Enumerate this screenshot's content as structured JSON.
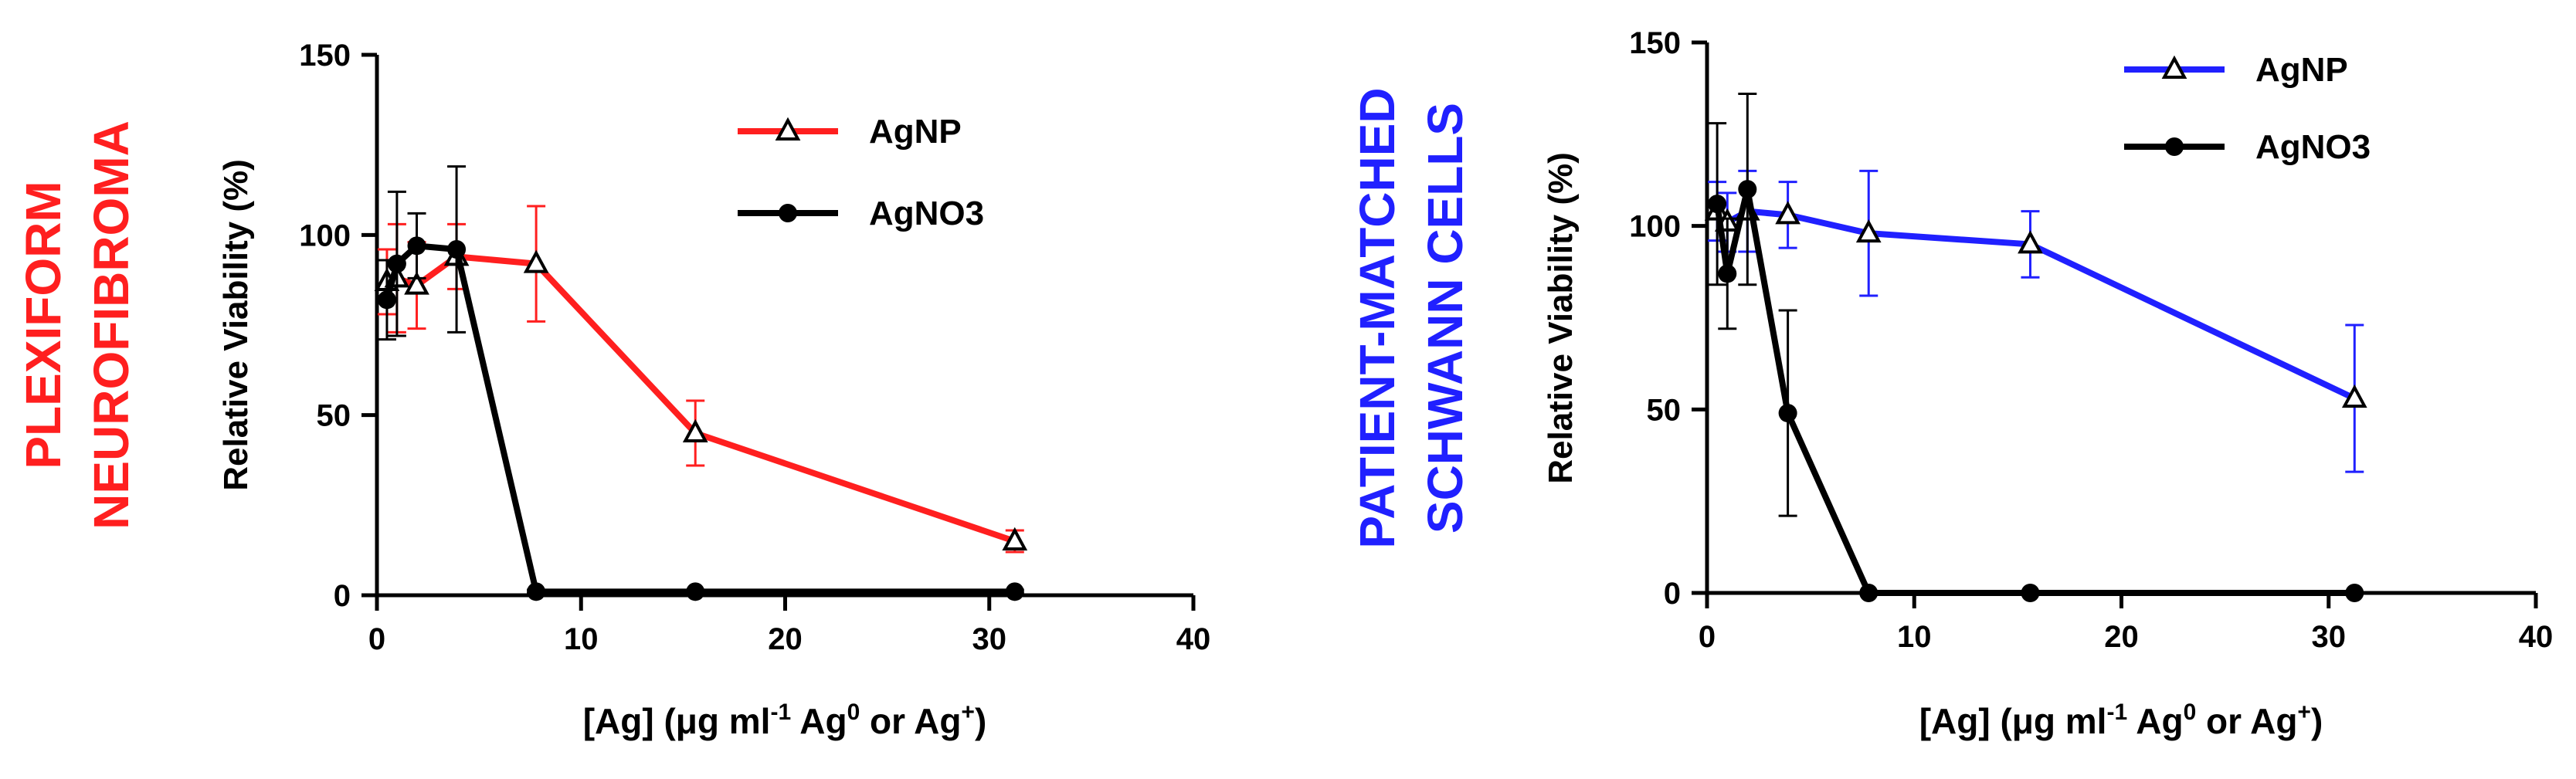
{
  "chart_data": [
    {
      "type": "line",
      "side_label": [
        "PLEXIFORM",
        "NEUROFIBROMA"
      ],
      "side_label_color": "#ff1f1f",
      "ylabel": "Relative Viability (%)",
      "xlabel_parts": [
        "[Ag] (μg ml",
        "-1",
        " Ag",
        "0",
        " or Ag",
        "+",
        ")"
      ],
      "xlim": [
        0,
        40
      ],
      "ylim": [
        0,
        150
      ],
      "xticks": [
        0,
        10,
        20,
        30,
        40
      ],
      "yticks": [
        0,
        50,
        100,
        150
      ],
      "xtick_labels": [
        "0",
        "10",
        "20",
        "30",
        "40"
      ],
      "ytick_labels": [
        "0",
        "50",
        "100",
        "150"
      ],
      "grid": false,
      "legend_position": "top-right",
      "series": [
        {
          "name": "AgNP",
          "marker": "triangle-open",
          "color": "#ff1f1f",
          "points": [
            {
              "x": 0.49,
              "y": 87,
              "err": 9
            },
            {
              "x": 0.98,
              "y": 88,
              "err": 15
            },
            {
              "x": 1.95,
              "y": 86,
              "err": 12
            },
            {
              "x": 3.9,
              "y": 94,
              "err": 9
            },
            {
              "x": 7.8,
              "y": 92,
              "err": 16
            },
            {
              "x": 15.6,
              "y": 45,
              "err": 9
            },
            {
              "x": 31.25,
              "y": 15,
              "err": 3
            }
          ]
        },
        {
          "name": "AgNO3",
          "marker": "circle-filled",
          "color": "#000000",
          "points": [
            {
              "x": 0.49,
              "y": 82,
              "err": 11
            },
            {
              "x": 0.98,
              "y": 92,
              "err": 20
            },
            {
              "x": 1.95,
              "y": 97,
              "err": 9
            },
            {
              "x": 3.9,
              "y": 96,
              "err": 23
            },
            {
              "x": 7.8,
              "y": 1,
              "err": 0.5
            },
            {
              "x": 15.6,
              "y": 1,
              "err": 0.5
            },
            {
              "x": 31.25,
              "y": 1,
              "err": 0.5
            }
          ]
        }
      ]
    },
    {
      "type": "line",
      "side_label": [
        "PATIENT-MATCHED",
        "SCHWANN CELLS"
      ],
      "side_label_color": "#2020ff",
      "ylabel": "Relative Viability (%)",
      "xlabel_parts": [
        "[Ag] (μg ml",
        "-1",
        " Ag",
        "0",
        " or Ag",
        "+",
        ")"
      ],
      "xlim": [
        0,
        40
      ],
      "ylim": [
        0,
        150
      ],
      "xticks": [
        0,
        10,
        20,
        30,
        40
      ],
      "yticks": [
        0,
        50,
        100,
        150
      ],
      "xtick_labels": [
        "0",
        "10",
        "20",
        "30",
        "40"
      ],
      "ytick_labels": [
        "0",
        "50",
        "100",
        "150"
      ],
      "grid": false,
      "legend_position": "top-right",
      "series": [
        {
          "name": "AgNP",
          "marker": "triangle-open",
          "color": "#2020ff",
          "points": [
            {
              "x": 0.49,
              "y": 104,
              "err": 8
            },
            {
              "x": 0.98,
              "y": 101,
              "err": 8
            },
            {
              "x": 1.95,
              "y": 104,
              "err": 11
            },
            {
              "x": 3.9,
              "y": 103,
              "err": 9
            },
            {
              "x": 7.8,
              "y": 98,
              "err": 17
            },
            {
              "x": 15.6,
              "y": 95,
              "err": 9
            },
            {
              "x": 31.25,
              "y": 53,
              "err": 20
            }
          ]
        },
        {
          "name": "AgNO3",
          "marker": "circle-filled",
          "color": "#000000",
          "points": [
            {
              "x": 0.49,
              "y": 106,
              "err": 22
            },
            {
              "x": 0.98,
              "y": 87,
              "err": 15
            },
            {
              "x": 1.95,
              "y": 110,
              "err": 26
            },
            {
              "x": 3.9,
              "y": 49,
              "err": 28
            },
            {
              "x": 7.8,
              "y": 0,
              "err": 0
            },
            {
              "x": 15.6,
              "y": 0,
              "err": 0
            },
            {
              "x": 31.25,
              "y": 0,
              "err": 0
            }
          ]
        }
      ]
    }
  ]
}
